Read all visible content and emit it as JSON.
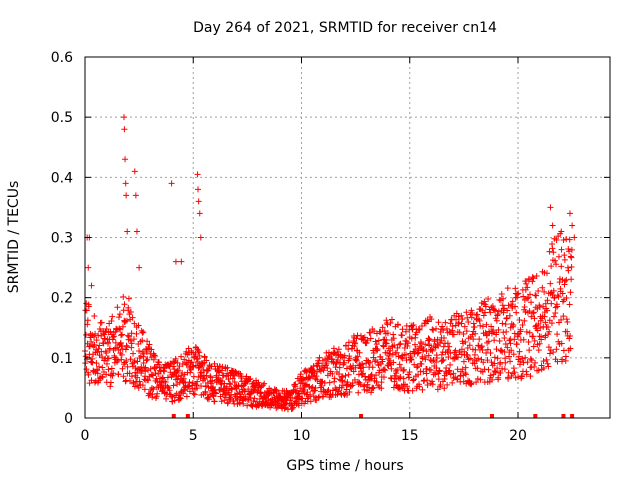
{
  "chart_data": {
    "type": "scatter",
    "title": "Day 264 of 2021, SRMTID for receiver cn14",
    "xlabel": "GPS time / hours",
    "ylabel": "SRMTID / TECUs",
    "xlim": [
      0,
      24.25
    ],
    "ylim": [
      0,
      0.6
    ],
    "xticks": [
      0,
      5,
      10,
      15,
      20
    ],
    "xtick_labels": [
      "0",
      "5",
      "10",
      "15",
      "20"
    ],
    "yticks": [
      0,
      0.1,
      0.2,
      0.3,
      0.4,
      0.5,
      0.6
    ],
    "ytick_labels": [
      "0",
      "0.1",
      "0.2",
      "0.3",
      "0.4",
      "0.5",
      "0.6"
    ],
    "grid": true,
    "marker": "+",
    "color": "#ff0000",
    "series": [
      {
        "name": "SRMTID",
        "profile": [
          [
            0.0,
            0.13
          ],
          [
            0.5,
            0.11
          ],
          [
            1.0,
            0.1
          ],
          [
            1.5,
            0.12
          ],
          [
            2.0,
            0.14
          ],
          [
            2.5,
            0.1
          ],
          [
            3.0,
            0.08
          ],
          [
            3.5,
            0.06
          ],
          [
            4.0,
            0.06
          ],
          [
            4.5,
            0.07
          ],
          [
            5.0,
            0.08
          ],
          [
            5.5,
            0.07
          ],
          [
            6.0,
            0.06
          ],
          [
            6.5,
            0.055
          ],
          [
            7.0,
            0.05
          ],
          [
            7.5,
            0.045
          ],
          [
            8.0,
            0.04
          ],
          [
            8.5,
            0.035
          ],
          [
            9.0,
            0.03
          ],
          [
            9.5,
            0.03
          ],
          [
            10.0,
            0.05
          ],
          [
            10.5,
            0.06
          ],
          [
            11.0,
            0.07
          ],
          [
            11.5,
            0.075
          ],
          [
            12.0,
            0.08
          ],
          [
            12.5,
            0.09
          ],
          [
            13.0,
            0.09
          ],
          [
            13.5,
            0.1
          ],
          [
            14.0,
            0.11
          ],
          [
            14.5,
            0.1
          ],
          [
            15.0,
            0.1
          ],
          [
            15.5,
            0.1
          ],
          [
            16.0,
            0.11
          ],
          [
            16.5,
            0.1
          ],
          [
            17.0,
            0.11
          ],
          [
            17.5,
            0.12
          ],
          [
            18.0,
            0.12
          ],
          [
            18.5,
            0.13
          ],
          [
            19.0,
            0.13
          ],
          [
            19.5,
            0.14
          ],
          [
            20.0,
            0.14
          ],
          [
            20.5,
            0.15
          ],
          [
            21.0,
            0.17
          ],
          [
            21.5,
            0.19
          ],
          [
            22.0,
            0.2
          ],
          [
            22.5,
            0.2
          ]
        ],
        "spikes": [
          [
            0.1,
            0.3
          ],
          [
            0.15,
            0.25
          ],
          [
            0.2,
            0.3
          ],
          [
            0.3,
            0.22
          ],
          [
            1.8,
            0.5
          ],
          [
            1.82,
            0.48
          ],
          [
            1.85,
            0.43
          ],
          [
            1.88,
            0.39
          ],
          [
            1.9,
            0.37
          ],
          [
            1.95,
            0.31
          ],
          [
            2.3,
            0.41
          ],
          [
            2.35,
            0.37
          ],
          [
            2.4,
            0.31
          ],
          [
            2.5,
            0.25
          ],
          [
            4.0,
            0.39
          ],
          [
            4.2,
            0.26
          ],
          [
            4.45,
            0.26
          ],
          [
            5.2,
            0.405
          ],
          [
            5.22,
            0.38
          ],
          [
            5.25,
            0.36
          ],
          [
            5.3,
            0.34
          ],
          [
            5.35,
            0.3
          ],
          [
            21.5,
            0.35
          ],
          [
            21.6,
            0.32
          ],
          [
            22.0,
            0.31
          ],
          [
            22.4,
            0.34
          ],
          [
            22.5,
            0.32
          ],
          [
            22.6,
            0.3
          ]
        ]
      }
    ],
    "gaps": [
      4.1,
      4.75,
      12.75,
      18.8,
      20.8,
      22.1,
      22.5
    ]
  }
}
